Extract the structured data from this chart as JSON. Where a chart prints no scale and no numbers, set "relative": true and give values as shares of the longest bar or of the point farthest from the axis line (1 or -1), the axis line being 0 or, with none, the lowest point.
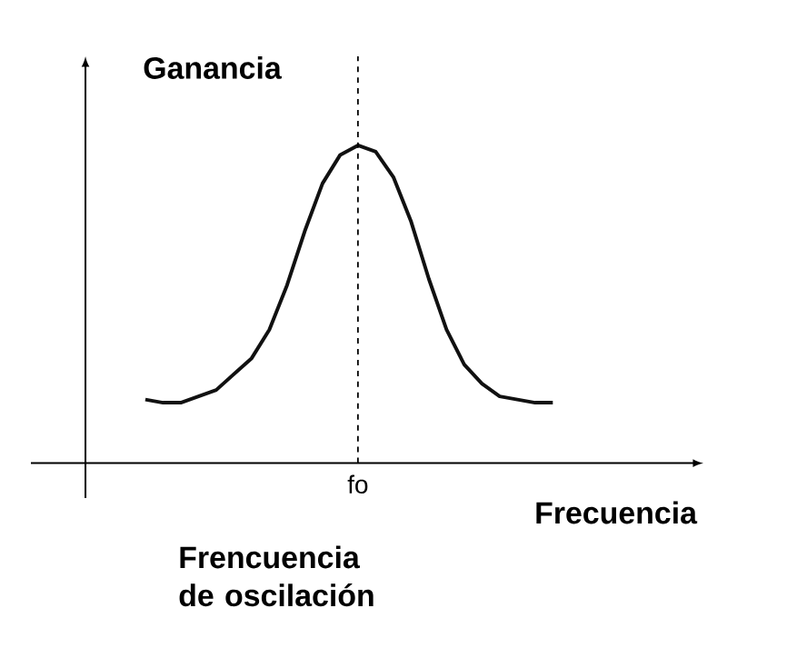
{
  "chart_data": {
    "type": "line",
    "relative": true,
    "xlabel": "Frecuencia",
    "ylabel": "Ganancia",
    "color": "#111111",
    "categories": [
      null,
      null,
      null,
      null,
      null,
      null,
      null,
      null,
      null,
      null,
      null,
      null,
      null,
      null,
      null,
      null,
      null,
      null,
      null,
      null,
      null,
      null,
      null,
      null
    ],
    "values": [
      0.2,
      0.19,
      0.19,
      0.21,
      0.23,
      0.28,
      0.33,
      0.42,
      0.56,
      0.73,
      0.88,
      0.97,
      1.0,
      0.98,
      0.9,
      0.76,
      0.58,
      0.42,
      0.31,
      0.25,
      0.21,
      0.2,
      0.19,
      0.19
    ],
    "annotations": [
      "fo",
      "Frencuencia de oscilación"
    ]
  }
}
